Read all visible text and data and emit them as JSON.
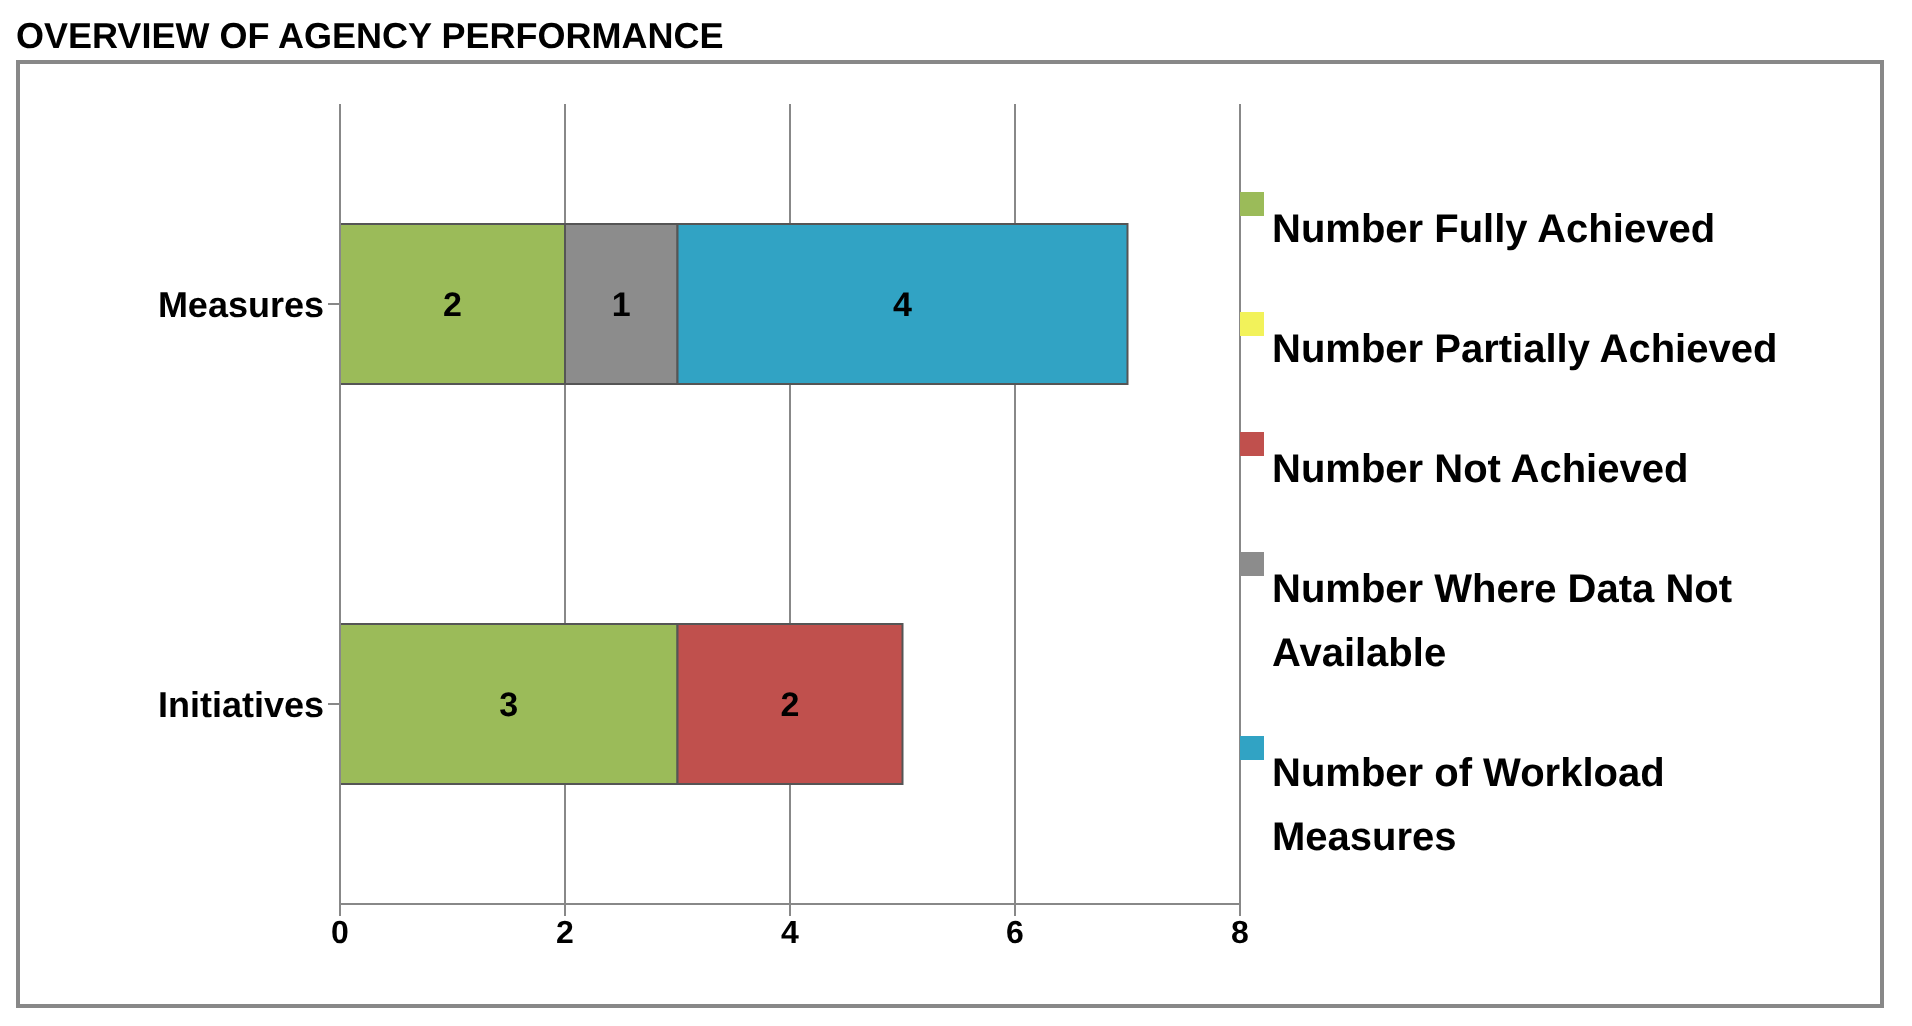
{
  "chart_data": {
    "type": "bar",
    "title": "OVERVIEW OF AGENCY PERFORMANCE",
    "orientation": "horizontal",
    "stacked": true,
    "categories": [
      "Measures",
      "Initiatives"
    ],
    "series": [
      {
        "name": "Number Fully Achieved",
        "color": "#9bbb59",
        "values": [
          2,
          3
        ]
      },
      {
        "name": "Number Partially Achieved",
        "color": "#f2f25a",
        "values": [
          null,
          null
        ]
      },
      {
        "name": "Number Not Achieved",
        "color": "#c0504d",
        "values": [
          null,
          2
        ]
      },
      {
        "name": "Number Where Data Not Available",
        "color": "#8c8c8c",
        "values": [
          1,
          null
        ]
      },
      {
        "name": "Number of Workload Measures",
        "color": "#31a3c4",
        "values": [
          4,
          null
        ]
      }
    ],
    "xlim": [
      0,
      8
    ],
    "xticks": [
      0,
      2,
      4,
      6,
      8
    ],
    "grid": "x",
    "legend": "right",
    "data_labels": true
  }
}
